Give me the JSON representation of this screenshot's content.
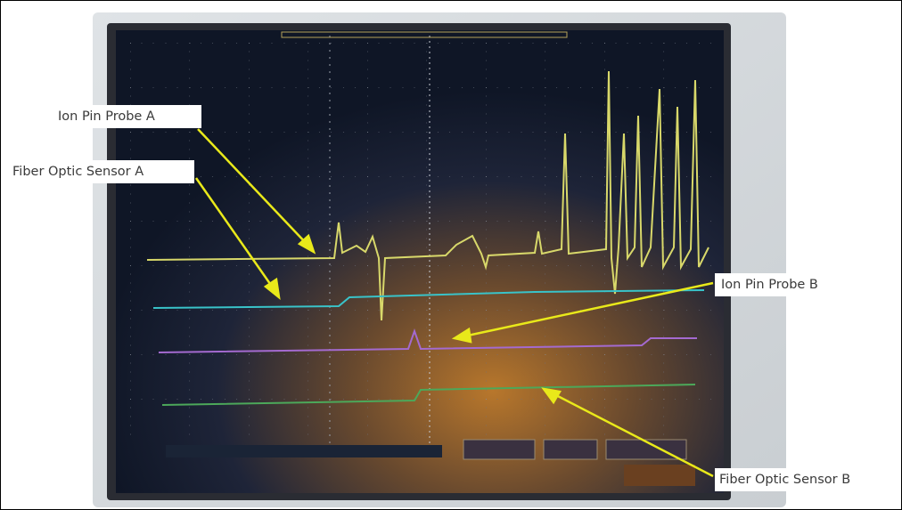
{
  "annotations": [
    {
      "label": "Ion Pin Probe A"
    },
    {
      "label": "Fiber Optic Sensor A"
    },
    {
      "label": "Ion Pin Probe B"
    },
    {
      "label": "Fiber Optic Sensor B"
    }
  ]
}
